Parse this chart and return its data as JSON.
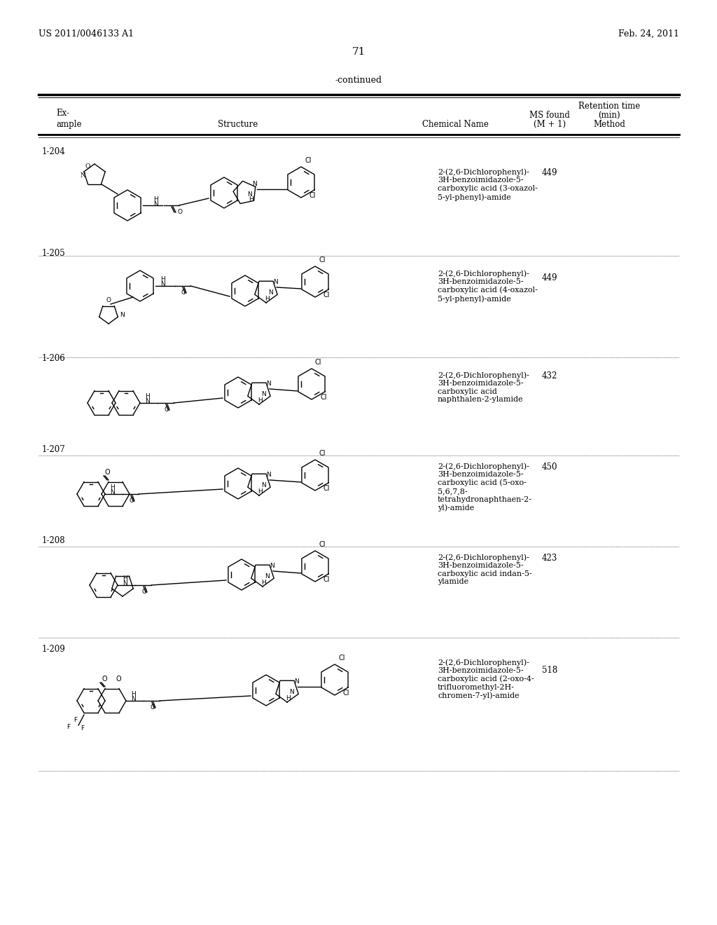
{
  "bg_color": "#ffffff",
  "page_number": "71",
  "left_header": "US 2011/0046133 A1",
  "right_header": "Feb. 24, 2011",
  "continued_text": "-continued",
  "col_headers": {
    "example": [
      "Ex-",
      "ample"
    ],
    "structure": "Structure",
    "chemical_name": "Chemical Name",
    "ms_found": [
      "MS found",
      "(M + 1)"
    ],
    "retention": [
      "Retention time",
      "(min)",
      "Method"
    ]
  },
  "rows": [
    {
      "example": "1-204",
      "chemical_name": "2-(2,6-Dichlorophenyl)-\n3H-benzoimidazole-5-\ncarboxylic acid (3-oxazol-\n5-yl-phenyl)-amide",
      "ms": "449",
      "method": ""
    },
    {
      "example": "1-205",
      "chemical_name": "2-(2,6-Dichlorophenyl)-\n3H-benzoimidazole-5-\ncarboxylic acid (4-oxazol-\n5-yl-phenyl)-amide",
      "ms": "449",
      "method": ""
    },
    {
      "example": "1-206",
      "chemical_name": "2-(2,6-Dichlorophenyl)-\n3H-benzoimidazole-5-\ncarboxylic acid\nnaphthalen-2-ylamide",
      "ms": "432",
      "method": ""
    },
    {
      "example": "1-207",
      "chemical_name": "2-(2,6-Dichlorophenyl)-\n3H-benzoimidazole-5-\ncarboxylic acid (5-oxo-\n5,6,7,8-\ntetrahydronaphthaen-2-\nyl)-amide",
      "ms": "450",
      "method": ""
    },
    {
      "example": "1-208",
      "chemical_name": "2-(2,6-Dichlorophenyl)-\n3H-benzoimidazole-5-\ncarboxylic acid indan-5-\nylamide",
      "ms": "423",
      "method": ""
    },
    {
      "example": "1-209",
      "chemical_name": "2-(2,6-Dichlorophenyl)-\n3H-benzoimidazole-5-\ncarboxylic acid (2-oxo-4-\ntrifluoromethyl-2H-\nchromen-7-yl)-amide",
      "ms": "518",
      "method": ""
    }
  ],
  "font_size_header": 9,
  "font_size_body": 8.5,
  "font_size_page": 10,
  "text_color": "#000000",
  "line_color": "#000000"
}
